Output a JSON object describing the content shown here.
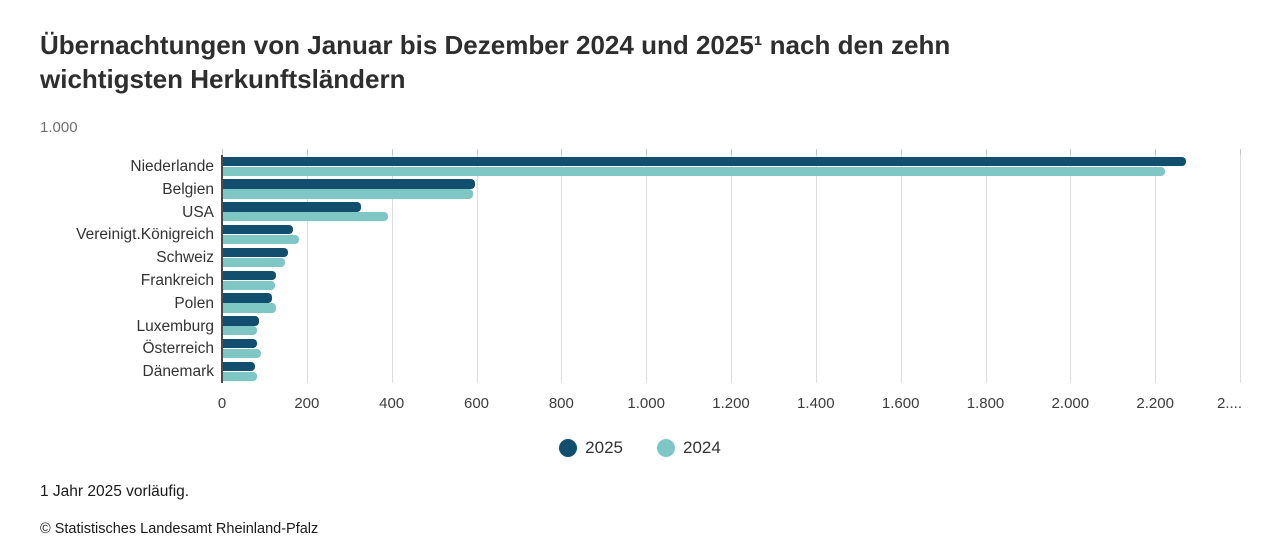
{
  "title_lines": [
    "Übernachtungen von Januar bis Dezember 2024 und 2025¹ nach den zehn",
    "wichtigsten Herkunftsländern"
  ],
  "subtitle": "1.000",
  "footnote": "1 Jahr 2025 vorläufig.",
  "copyright": "© Statistisches Landesamt Rheinland-Pfalz",
  "colors": {
    "series2025": "#124F6E",
    "series2024": "#7FC7C4",
    "grid": "#dcdcdc",
    "axis": "#4a4a4a"
  },
  "legend": [
    {
      "label": "2025",
      "color": "#124F6E"
    },
    {
      "label": "2024",
      "color": "#7FC7C4"
    }
  ],
  "chart_data": {
    "type": "bar",
    "orientation": "horizontal",
    "title": "Übernachtungen von Januar bis Dezember 2024 und 2025¹ nach den zehn wichtigsten Herkunftsländern",
    "unit_label": "1.000",
    "categories": [
      "Niederlande",
      "Belgien",
      "USA",
      "Vereinigt.Königreich",
      "Schweiz",
      "Frankreich",
      "Polen",
      "Luxemburg",
      "Österreich",
      "Dänemark"
    ],
    "series": [
      {
        "name": "2025",
        "color": "#124F6E",
        "values": [
          2270,
          595,
          325,
          165,
          153,
          125,
          115,
          85,
          79,
          75
        ]
      },
      {
        "name": "2024",
        "color": "#7FC7C4",
        "values": [
          2220,
          590,
          390,
          178,
          147,
          123,
          125,
          80,
          89,
          79
        ]
      }
    ],
    "xlim": [
      0,
      2400
    ],
    "x_ticks": [
      0,
      200,
      400,
      600,
      800,
      1000,
      1200,
      1400,
      1600,
      1800,
      2000,
      2200,
      2400
    ],
    "x_tick_labels": [
      "0",
      "200",
      "400",
      "600",
      "800",
      "1.000",
      "1.200",
      "1.400",
      "1.600",
      "1.800",
      "2.000",
      "2.200",
      "2...."
    ],
    "grid": true,
    "legend_position": "bottom-center"
  }
}
